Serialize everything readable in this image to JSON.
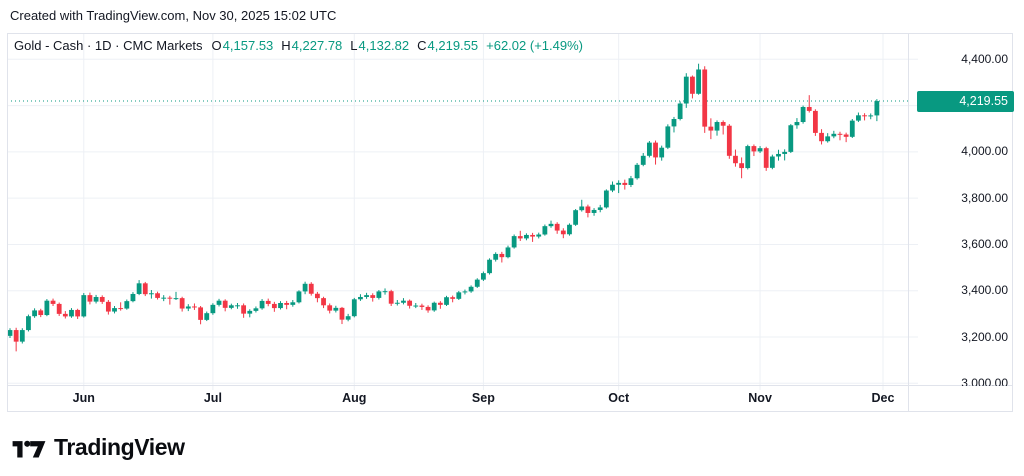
{
  "attribution": "Created with TradingView.com, Nov 30, 2025 15:02 UTC",
  "legend": {
    "title": "Gold - Cash · 1D · CMC Markets",
    "ohlc": [
      {
        "label": "O",
        "value": "4,157.53"
      },
      {
        "label": "H",
        "value": "4,227.78"
      },
      {
        "label": "L",
        "value": "4,132.82"
      },
      {
        "label": "C",
        "value": "4,219.55"
      }
    ],
    "change": "+62.02 (+1.49%)"
  },
  "price_scale": {
    "last_price_label": "4,219.55",
    "labels": [
      {
        "text": "4,400.00",
        "value": 4400
      },
      {
        "text": "4,200.00",
        "value": 4200
      },
      {
        "text": "4,000.00",
        "value": 4000
      },
      {
        "text": "3,800.00",
        "value": 3800
      },
      {
        "text": "3,600.00",
        "value": 3600
      },
      {
        "text": "3,400.00",
        "value": 3400
      },
      {
        "text": "3,200.00",
        "value": 3200
      },
      {
        "text": "3,000.00",
        "value": 3000
      }
    ]
  },
  "logo": {
    "text": "TradingView"
  },
  "colors": {
    "up": "#089981",
    "down": "#F23645",
    "accent": "#089981",
    "text": "#131722",
    "grid": "#EDF0F5",
    "border": "#E0E3EB",
    "badge_bg": "#089981",
    "badge_text": "#FFFFFF"
  },
  "chart_data": {
    "type": "candlestick",
    "title": "Gold - Cash · 1D · CMC Markets",
    "symbol": "Gold - Cash",
    "interval": "1D",
    "exchange": "CMC Markets",
    "last": {
      "open": 4157.53,
      "high": 4227.78,
      "low": 4132.82,
      "close": 4219.55,
      "change": 62.02,
      "change_pct": 1.49
    },
    "ylim": [
      3000,
      4400
    ],
    "y_ticks": [
      3000,
      3200,
      3400,
      3600,
      3800,
      4000,
      4200,
      4400
    ],
    "grid": true,
    "months": [
      {
        "label": "Jun",
        "index": 12
      },
      {
        "label": "Jul",
        "index": 33
      },
      {
        "label": "Aug",
        "index": 56
      },
      {
        "label": "Sep",
        "index": 77
      },
      {
        "label": "Oct",
        "index": 99
      },
      {
        "label": "Nov",
        "index": 122
      },
      {
        "label": "Dec",
        "index": 142
      }
    ],
    "candles": [
      [
        3205,
        3238,
        3196,
        3230
      ],
      [
        3230,
        3240,
        3138,
        3180
      ],
      [
        3180,
        3238,
        3172,
        3230
      ],
      [
        3230,
        3297,
        3224,
        3290
      ],
      [
        3290,
        3324,
        3283,
        3315
      ],
      [
        3315,
        3322,
        3286,
        3295
      ],
      [
        3295,
        3364,
        3290,
        3357
      ],
      [
        3357,
        3366,
        3334,
        3343
      ],
      [
        3343,
        3349,
        3291,
        3300
      ],
      [
        3300,
        3312,
        3280,
        3289
      ],
      [
        3289,
        3325,
        3283,
        3317
      ],
      [
        3317,
        3322,
        3278,
        3289
      ],
      [
        3289,
        3390,
        3284,
        3381
      ],
      [
        3381,
        3392,
        3341,
        3353
      ],
      [
        3353,
        3382,
        3345,
        3373
      ],
      [
        3373,
        3380,
        3343,
        3352
      ],
      [
        3352,
        3360,
        3297,
        3310
      ],
      [
        3310,
        3334,
        3302,
        3325
      ],
      [
        3325,
        3350,
        3314,
        3323
      ],
      [
        3323,
        3362,
        3318,
        3355
      ],
      [
        3355,
        3394,
        3350,
        3386
      ],
      [
        3386,
        3446,
        3381,
        3432
      ],
      [
        3432,
        3438,
        3377,
        3385
      ],
      [
        3385,
        3403,
        3366,
        3389
      ],
      [
        3389,
        3396,
        3362,
        3369
      ],
      [
        3369,
        3381,
        3355,
        3370
      ],
      [
        3370,
        3378,
        3340,
        3368
      ],
      [
        3368,
        3395,
        3360,
        3368
      ],
      [
        3368,
        3374,
        3310,
        3323
      ],
      [
        3323,
        3342,
        3312,
        3332
      ],
      [
        3332,
        3345,
        3317,
        3328
      ],
      [
        3328,
        3334,
        3255,
        3274
      ],
      [
        3274,
        3310,
        3269,
        3303
      ],
      [
        3303,
        3346,
        3296,
        3339
      ],
      [
        3339,
        3365,
        3332,
        3357
      ],
      [
        3357,
        3363,
        3311,
        3326
      ],
      [
        3326,
        3344,
        3320,
        3337
      ],
      [
        3337,
        3347,
        3322,
        3337
      ],
      [
        3337,
        3345,
        3283,
        3301
      ],
      [
        3301,
        3320,
        3285,
        3313
      ],
      [
        3313,
        3332,
        3306,
        3324
      ],
      [
        3324,
        3364,
        3318,
        3356
      ],
      [
        3356,
        3366,
        3333,
        3343
      ],
      [
        3343,
        3352,
        3309,
        3325
      ],
      [
        3325,
        3355,
        3319,
        3347
      ],
      [
        3347,
        3356,
        3320,
        3339
      ],
      [
        3339,
        3360,
        3331,
        3350
      ],
      [
        3350,
        3402,
        3345,
        3397
      ],
      [
        3397,
        3439,
        3385,
        3430
      ],
      [
        3430,
        3437,
        3379,
        3387
      ],
      [
        3387,
        3395,
        3350,
        3368
      ],
      [
        3368,
        3374,
        3325,
        3337
      ],
      [
        3337,
        3345,
        3302,
        3314
      ],
      [
        3314,
        3335,
        3306,
        3326
      ],
      [
        3326,
        3330,
        3256,
        3275
      ],
      [
        3275,
        3300,
        3268,
        3290
      ],
      [
        3290,
        3369,
        3285,
        3363
      ],
      [
        3363,
        3385,
        3356,
        3373
      ],
      [
        3373,
        3391,
        3365,
        3381
      ],
      [
        3381,
        3389,
        3353,
        3369
      ],
      [
        3369,
        3403,
        3362,
        3397
      ],
      [
        3397,
        3410,
        3383,
        3398
      ],
      [
        3398,
        3404,
        3334,
        3344
      ],
      [
        3344,
        3360,
        3336,
        3348
      ],
      [
        3348,
        3368,
        3341,
        3357
      ],
      [
        3357,
        3362,
        3323,
        3335
      ],
      [
        3335,
        3347,
        3325,
        3336
      ],
      [
        3336,
        3344,
        3317,
        3330
      ],
      [
        3330,
        3337,
        3305,
        3315
      ],
      [
        3315,
        3353,
        3309,
        3348
      ],
      [
        3348,
        3355,
        3322,
        3339
      ],
      [
        3339,
        3378,
        3334,
        3372
      ],
      [
        3372,
        3379,
        3350,
        3365
      ],
      [
        3365,
        3399,
        3360,
        3393
      ],
      [
        3393,
        3405,
        3384,
        3397
      ],
      [
        3397,
        3423,
        3391,
        3417
      ],
      [
        3417,
        3454,
        3412,
        3448
      ],
      [
        3448,
        3483,
        3442,
        3476
      ],
      [
        3476,
        3540,
        3470,
        3534
      ],
      [
        3534,
        3566,
        3526,
        3559
      ],
      [
        3559,
        3568,
        3522,
        3545
      ],
      [
        3545,
        3595,
        3540,
        3587
      ],
      [
        3587,
        3643,
        3582,
        3636
      ],
      [
        3636,
        3659,
        3615,
        3626
      ],
      [
        3626,
        3648,
        3618,
        3641
      ],
      [
        3641,
        3650,
        3611,
        3634
      ],
      [
        3634,
        3651,
        3626,
        3643
      ],
      [
        3643,
        3686,
        3638,
        3679
      ],
      [
        3679,
        3703,
        3672,
        3689
      ],
      [
        3689,
        3696,
        3646,
        3660
      ],
      [
        3660,
        3670,
        3627,
        3644
      ],
      [
        3644,
        3691,
        3638,
        3685
      ],
      [
        3685,
        3753,
        3680,
        3748
      ],
      [
        3748,
        3793,
        3742,
        3764
      ],
      [
        3764,
        3772,
        3717,
        3736
      ],
      [
        3736,
        3757,
        3724,
        3749
      ],
      [
        3749,
        3771,
        3739,
        3760
      ],
      [
        3760,
        3838,
        3755,
        3833
      ],
      [
        3833,
        3872,
        3826,
        3858
      ],
      [
        3858,
        3877,
        3822,
        3866
      ],
      [
        3866,
        3880,
        3837,
        3857
      ],
      [
        3857,
        3896,
        3848,
        3886
      ],
      [
        3886,
        3952,
        3880,
        3944
      ],
      [
        3944,
        3995,
        3938,
        3983
      ],
      [
        3983,
        4047,
        3976,
        4040
      ],
      [
        4040,
        4049,
        3945,
        3976
      ],
      [
        3976,
        4027,
        3962,
        4018
      ],
      [
        4018,
        4119,
        4012,
        4110
      ],
      [
        4110,
        4151,
        4084,
        4142
      ],
      [
        4142,
        4218,
        4136,
        4209
      ],
      [
        4209,
        4340,
        4190,
        4325
      ],
      [
        4325,
        4330,
        4231,
        4251
      ],
      [
        4251,
        4381,
        4247,
        4356
      ],
      [
        4356,
        4370,
        4082,
        4109
      ],
      [
        4109,
        4145,
        4055,
        4092
      ],
      [
        4092,
        4136,
        4070,
        4129
      ],
      [
        4129,
        4136,
        4075,
        4113
      ],
      [
        4113,
        4120,
        3970,
        3983
      ],
      [
        3983,
        4010,
        3936,
        3951
      ],
      [
        3951,
        3976,
        3886,
        3930
      ],
      [
        3930,
        4031,
        3924,
        4025
      ],
      [
        4025,
        4032,
        3982,
        4002
      ],
      [
        4002,
        4025,
        3995,
        4016
      ],
      [
        4016,
        4022,
        3918,
        3931
      ],
      [
        3931,
        3988,
        3925,
        3980
      ],
      [
        3980,
        4009,
        3962,
        3991
      ],
      [
        3991,
        4011,
        3963,
        4000
      ],
      [
        4000,
        4120,
        3995,
        4115
      ],
      [
        4115,
        4146,
        4100,
        4129
      ],
      [
        4129,
        4200,
        4122,
        4194
      ],
      [
        4194,
        4245,
        4170,
        4177
      ],
      [
        4177,
        4184,
        4069,
        4082
      ],
      [
        4082,
        4098,
        4032,
        4046
      ],
      [
        4046,
        4081,
        4040,
        4067
      ],
      [
        4067,
        4091,
        4059,
        4078
      ],
      [
        4078,
        4087,
        4050,
        4075
      ],
      [
        4075,
        4083,
        4042,
        4065
      ],
      [
        4065,
        4142,
        4060,
        4135
      ],
      [
        4135,
        4170,
        4129,
        4158
      ],
      [
        4158,
        4167,
        4136,
        4154
      ],
      [
        4154,
        4166,
        4141,
        4157.53
      ],
      [
        4157.53,
        4227.78,
        4132.82,
        4219.55
      ]
    ]
  }
}
